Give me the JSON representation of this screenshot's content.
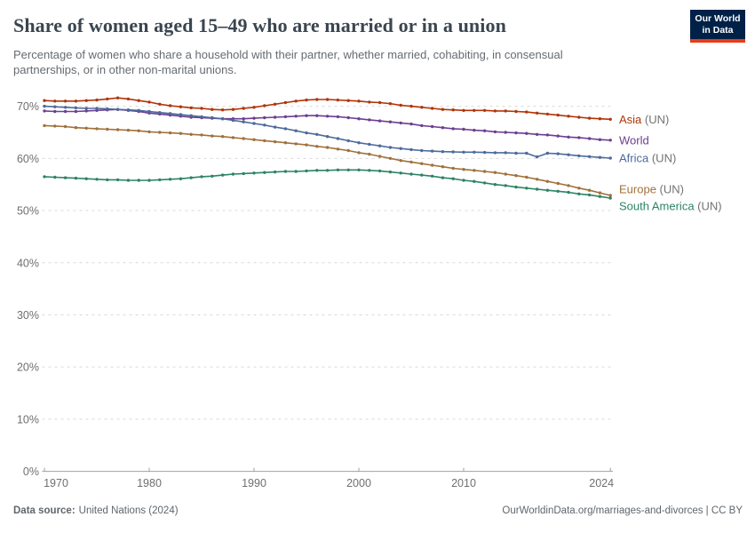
{
  "header": {
    "title": "Share of women aged 15–49 who are married or in a union",
    "subtitle": "Percentage of women who share a household with their partner, whether married, cohabiting, in consensual partnerships, or in other non-marital unions.",
    "logo": {
      "line1": "Our World",
      "line2": "in Data",
      "bg_color": "#002147",
      "accent_color": "#E63E19"
    }
  },
  "chart_data": {
    "type": "line",
    "title": "Share of women aged 15–49 who are married or in a union",
    "xlabel": "",
    "ylabel": "",
    "unit": "%",
    "x_start": 1970,
    "x_end": 2024,
    "x_step": 1,
    "ylim": [
      0,
      72.5
    ],
    "yticks": [
      0,
      10,
      20,
      30,
      40,
      50,
      60,
      70
    ],
    "xticks": [
      1970,
      1980,
      1990,
      2000,
      2010,
      2024
    ],
    "grid": "horizontal-dashed",
    "legend_position": "right-of-line-ends",
    "grid_color": "#d9d9d9",
    "axis_color": "#a0a0a0",
    "suffix_color": "#737373",
    "series": [
      {
        "name": "Asia (UN)",
        "entity": "Asia",
        "suffix": " (UN)",
        "slug": "asia-un",
        "color": "#B13507",
        "label_dy": 0,
        "values": [
          71.1,
          71.0,
          71.0,
          71.0,
          71.1,
          71.2,
          71.4,
          71.6,
          71.4,
          71.1,
          70.8,
          70.4,
          70.1,
          69.9,
          69.7,
          69.6,
          69.4,
          69.3,
          69.4,
          69.6,
          69.8,
          70.1,
          70.4,
          70.7,
          71.0,
          71.2,
          71.3,
          71.3,
          71.2,
          71.1,
          71.0,
          70.8,
          70.7,
          70.5,
          70.2,
          70.0,
          69.8,
          69.6,
          69.4,
          69.3,
          69.2,
          69.2,
          69.2,
          69.1,
          69.1,
          69.0,
          68.9,
          68.7,
          68.5,
          68.3,
          68.1,
          67.9,
          67.7,
          67.6,
          67.5
        ]
      },
      {
        "name": "World",
        "entity": "World",
        "suffix": "",
        "slug": "world",
        "color": "#6D3E91",
        "label_dy": 0,
        "values": [
          69.1,
          69.0,
          69.0,
          69.0,
          69.1,
          69.2,
          69.3,
          69.4,
          69.2,
          69.0,
          68.7,
          68.5,
          68.3,
          68.1,
          67.9,
          67.8,
          67.7,
          67.6,
          67.6,
          67.6,
          67.7,
          67.8,
          67.9,
          68.0,
          68.1,
          68.2,
          68.2,
          68.1,
          68.0,
          67.8,
          67.6,
          67.4,
          67.2,
          67.0,
          66.8,
          66.6,
          66.3,
          66.1,
          65.9,
          65.7,
          65.6,
          65.4,
          65.3,
          65.1,
          65.0,
          64.9,
          64.8,
          64.6,
          64.5,
          64.3,
          64.1,
          64.0,
          63.8,
          63.6,
          63.5
        ]
      },
      {
        "name": "Africa (UN)",
        "entity": "Africa",
        "suffix": " (UN)",
        "slug": "africa-un",
        "color": "#4C6A9C",
        "label_dy": 0,
        "values": [
          70.0,
          69.9,
          69.8,
          69.7,
          69.6,
          69.6,
          69.5,
          69.4,
          69.3,
          69.2,
          69.0,
          68.8,
          68.6,
          68.4,
          68.2,
          68.0,
          67.8,
          67.6,
          67.3,
          67.0,
          66.7,
          66.4,
          66.0,
          65.7,
          65.3,
          64.9,
          64.6,
          64.2,
          63.8,
          63.4,
          63.0,
          62.7,
          62.4,
          62.1,
          61.9,
          61.7,
          61.5,
          61.4,
          61.3,
          61.25,
          61.2,
          61.2,
          61.15,
          61.1,
          61.1,
          61.0,
          61.0,
          60.3,
          61.0,
          60.9,
          60.7,
          60.5,
          60.35,
          60.2,
          60.05
        ]
      },
      {
        "name": "Europe (UN)",
        "entity": "Europe",
        "suffix": " (UN)",
        "slug": "europe-un",
        "color": "#A0713B",
        "label_dy": -7,
        "values": [
          66.3,
          66.2,
          66.1,
          65.9,
          65.8,
          65.7,
          65.6,
          65.5,
          65.4,
          65.3,
          65.1,
          65.0,
          64.9,
          64.8,
          64.6,
          64.5,
          64.3,
          64.2,
          64.0,
          63.8,
          63.6,
          63.4,
          63.2,
          63.0,
          62.8,
          62.6,
          62.3,
          62.1,
          61.8,
          61.5,
          61.1,
          60.8,
          60.4,
          60.0,
          59.6,
          59.3,
          59.0,
          58.7,
          58.4,
          58.1,
          57.9,
          57.7,
          57.5,
          57.3,
          57.0,
          56.7,
          56.4,
          56.0,
          55.6,
          55.2,
          54.8,
          54.3,
          53.9,
          53.4,
          52.9
        ]
      },
      {
        "name": "South America (UN)",
        "entity": "South America",
        "suffix": " (UN)",
        "slug": "south-america-un",
        "color": "#2C8465",
        "label_dy": 9,
        "values": [
          56.5,
          56.4,
          56.3,
          56.2,
          56.1,
          56.0,
          55.9,
          55.9,
          55.8,
          55.8,
          55.8,
          55.9,
          56.0,
          56.1,
          56.3,
          56.5,
          56.6,
          56.8,
          57.0,
          57.1,
          57.2,
          57.3,
          57.4,
          57.5,
          57.5,
          57.6,
          57.7,
          57.7,
          57.8,
          57.8,
          57.8,
          57.7,
          57.6,
          57.4,
          57.2,
          57.0,
          56.8,
          56.6,
          56.3,
          56.1,
          55.8,
          55.6,
          55.3,
          55.0,
          54.8,
          54.5,
          54.3,
          54.1,
          53.9,
          53.7,
          53.5,
          53.2,
          53.0,
          52.7,
          52.4
        ]
      }
    ]
  },
  "footer": {
    "source_label": "Data source:",
    "source_text": "United Nations (2024)",
    "right_text": "OurWorldinData.org/marriages-and-divorces | CC BY"
  }
}
